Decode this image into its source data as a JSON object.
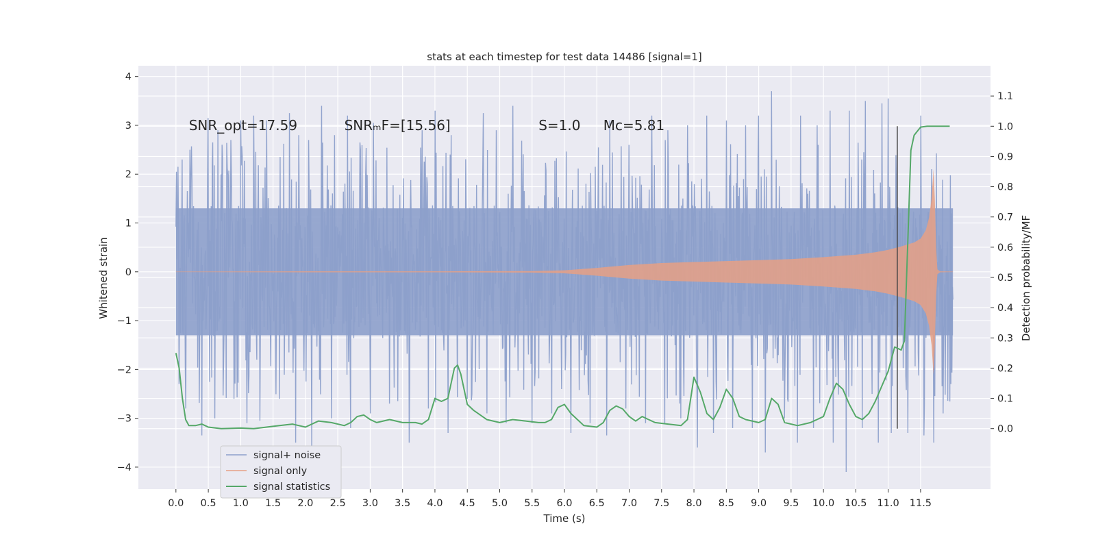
{
  "chart_data": {
    "type": "line",
    "title": "stats at each timestep for test data 14486 [signal=1]",
    "xlabel": "Time (s)",
    "ylabel": "Whitened strain",
    "y2label": "Detection probability/MF",
    "xlim": [
      -0.58,
      12.58
    ],
    "ylim": [
      -4.45,
      4.22
    ],
    "y2lim": [
      -0.2,
      1.2
    ],
    "x_ticks": [
      "0.0",
      "0.5",
      "1.0",
      "1.5",
      "2.0",
      "2.5",
      "3.0",
      "3.5",
      "4.0",
      "4.5",
      "5.0",
      "5.5",
      "6.0",
      "6.5",
      "7.0",
      "7.5",
      "8.0",
      "8.5",
      "9.0",
      "9.5",
      "10.0",
      "10.5",
      "11.0",
      "11.5"
    ],
    "y_ticks": [
      "4",
      "3",
      "2",
      "1",
      "0",
      "−1",
      "−2",
      "−3",
      "−4"
    ],
    "y2_ticks": [
      "1.1",
      "1.0",
      "0.9",
      "0.8",
      "0.7",
      "0.6",
      "0.5",
      "0.4",
      "0.3",
      "0.2",
      "0.1",
      "0.0"
    ],
    "grid": true,
    "legend_position": "lower-left",
    "annotations": [
      {
        "text": "SNR_opt=17.59",
        "x": 0.2,
        "y": 3.0
      },
      {
        "text": "SNRₘF=[15.56]",
        "x": 2.6,
        "y": 3.0
      },
      {
        "text": "S=1.0",
        "x": 5.6,
        "y": 3.0
      },
      {
        "text": "Mᴄ=5.81",
        "x": 6.6,
        "y": 3.0
      }
    ],
    "vertical_marker_x": 11.14,
    "series": [
      {
        "name": "signal+ noise",
        "color": "#8da0cb",
        "x_range": [
          0.0,
          12.0
        ],
        "core_range": [
          -1.3,
          1.3
        ],
        "peaks_high": [
          [
            0.03,
            2.15
          ],
          [
            0.1,
            2.3
          ],
          [
            0.22,
            2.5
          ],
          [
            0.4,
            2.6
          ],
          [
            0.5,
            3.15
          ],
          [
            0.65,
            2.9
          ],
          [
            0.85,
            2.7
          ],
          [
            1.0,
            3.1
          ],
          [
            1.2,
            3.2
          ],
          [
            1.4,
            3.1
          ],
          [
            1.6,
            2.5
          ],
          [
            1.75,
            3.25
          ],
          [
            1.9,
            2.8
          ],
          [
            2.05,
            2.7
          ],
          [
            2.25,
            3.4
          ],
          [
            2.45,
            2.8
          ],
          [
            2.65,
            3.2
          ],
          [
            2.85,
            2.5
          ],
          [
            3.05,
            3.05
          ],
          [
            3.3,
            2.6
          ],
          [
            3.6,
            3.5
          ],
          [
            3.8,
            2.9
          ],
          [
            4.0,
            3.3
          ],
          [
            4.25,
            2.8
          ],
          [
            4.5,
            3.0
          ],
          [
            4.75,
            3.25
          ],
          [
            4.95,
            2.9
          ],
          [
            5.2,
            3.4
          ],
          [
            5.5,
            2.9
          ],
          [
            5.8,
            3.5
          ],
          [
            6.1,
            2.8
          ],
          [
            6.4,
            3.2
          ],
          [
            6.7,
            3.1
          ],
          [
            7.0,
            2.6
          ],
          [
            7.35,
            3.2
          ],
          [
            7.6,
            2.9
          ],
          [
            7.9,
            3.0
          ],
          [
            8.2,
            3.2
          ],
          [
            8.5,
            3.1
          ],
          [
            8.8,
            3.0
          ],
          [
            9.0,
            3.2
          ],
          [
            9.2,
            3.7
          ],
          [
            9.4,
            3.4
          ],
          [
            9.65,
            3.2
          ],
          [
            9.9,
            3.0
          ],
          [
            10.1,
            3.3
          ],
          [
            10.4,
            3.3
          ],
          [
            10.65,
            3.5
          ],
          [
            10.9,
            3.45
          ],
          [
            11.0,
            3.55
          ],
          [
            11.3,
            3.3
          ],
          [
            11.5,
            3.2
          ],
          [
            11.7,
            3.25
          ],
          [
            11.85,
            2.7
          ],
          [
            11.97,
            2.0
          ]
        ],
        "peaks_low": [
          [
            0.05,
            -2.3
          ],
          [
            0.15,
            -2.8
          ],
          [
            0.4,
            -3.35
          ],
          [
            0.6,
            -3.0
          ],
          [
            0.9,
            -2.6
          ],
          [
            1.1,
            -3.1
          ],
          [
            1.3,
            -3.05
          ],
          [
            1.6,
            -2.6
          ],
          [
            1.85,
            -3.5
          ],
          [
            2.1,
            -3.6
          ],
          [
            2.4,
            -3.0
          ],
          [
            2.7,
            -3.2
          ],
          [
            3.0,
            -2.9
          ],
          [
            3.3,
            -2.7
          ],
          [
            3.6,
            -3.5
          ],
          [
            3.9,
            -2.8
          ],
          [
            4.2,
            -3.3
          ],
          [
            4.5,
            -2.6
          ],
          [
            4.8,
            -2.9
          ],
          [
            5.1,
            -3.1
          ],
          [
            5.5,
            -3.1
          ],
          [
            5.8,
            -2.9
          ],
          [
            6.1,
            -3.3
          ],
          [
            6.4,
            -3.1
          ],
          [
            6.65,
            -3.35
          ],
          [
            6.95,
            -2.8
          ],
          [
            7.25,
            -3.1
          ],
          [
            7.55,
            -3.1
          ],
          [
            7.8,
            -3.0
          ],
          [
            8.05,
            -3.6
          ],
          [
            8.3,
            -3.3
          ],
          [
            8.6,
            -3.2
          ],
          [
            8.9,
            -3.2
          ],
          [
            9.1,
            -3.7
          ],
          [
            9.4,
            -3.0
          ],
          [
            9.6,
            -3.5
          ],
          [
            9.85,
            -3.2
          ],
          [
            10.15,
            -3.5
          ],
          [
            10.35,
            -4.1
          ],
          [
            10.6,
            -3.2
          ],
          [
            10.85,
            -3.5
          ],
          [
            11.05,
            -3.3
          ],
          [
            11.3,
            -3.3
          ],
          [
            11.55,
            -3.35
          ],
          [
            11.7,
            -3.5
          ],
          [
            11.85,
            -2.9
          ],
          [
            11.97,
            -2.3
          ]
        ]
      },
      {
        "name": "signal only",
        "color": "#e6a085",
        "envelope": [
          [
            0.0,
            0.005
          ],
          [
            2.0,
            0.01
          ],
          [
            4.0,
            0.01
          ],
          [
            5.5,
            0.015
          ],
          [
            6.0,
            0.03
          ],
          [
            6.5,
            0.08
          ],
          [
            7.0,
            0.14
          ],
          [
            7.5,
            0.18
          ],
          [
            8.0,
            0.2
          ],
          [
            8.5,
            0.22
          ],
          [
            9.0,
            0.24
          ],
          [
            9.5,
            0.26
          ],
          [
            10.0,
            0.3
          ],
          [
            10.5,
            0.35
          ],
          [
            10.8,
            0.4
          ],
          [
            11.0,
            0.45
          ],
          [
            11.2,
            0.52
          ],
          [
            11.4,
            0.6
          ],
          [
            11.5,
            0.68
          ],
          [
            11.58,
            0.85
          ],
          [
            11.63,
            1.1
          ],
          [
            11.67,
            1.5
          ],
          [
            11.7,
            2.1
          ],
          [
            11.72,
            1.5
          ],
          [
            11.74,
            0.5
          ],
          [
            11.76,
            0.05
          ],
          [
            11.8,
            0.01
          ],
          [
            12.0,
            0.005
          ]
        ]
      },
      {
        "name": "signal statistics",
        "color": "#55a868",
        "points": [
          [
            0.0,
            0.25
          ],
          [
            0.05,
            0.2
          ],
          [
            0.1,
            0.1
          ],
          [
            0.15,
            0.03
          ],
          [
            0.2,
            0.01
          ],
          [
            0.3,
            0.01
          ],
          [
            0.4,
            0.015
          ],
          [
            0.5,
            0.005
          ],
          [
            0.7,
            0.0
          ],
          [
            1.0,
            0.002
          ],
          [
            1.2,
            0.0
          ],
          [
            1.4,
            0.005
          ],
          [
            1.6,
            0.01
          ],
          [
            1.8,
            0.015
          ],
          [
            1.9,
            0.01
          ],
          [
            2.0,
            0.005
          ],
          [
            2.2,
            0.025
          ],
          [
            2.4,
            0.02
          ],
          [
            2.6,
            0.01
          ],
          [
            2.7,
            0.02
          ],
          [
            2.8,
            0.04
          ],
          [
            2.9,
            0.045
          ],
          [
            3.0,
            0.03
          ],
          [
            3.1,
            0.02
          ],
          [
            3.3,
            0.03
          ],
          [
            3.5,
            0.02
          ],
          [
            3.7,
            0.02
          ],
          [
            3.8,
            0.015
          ],
          [
            3.9,
            0.03
          ],
          [
            4.0,
            0.1
          ],
          [
            4.1,
            0.09
          ],
          [
            4.2,
            0.1
          ],
          [
            4.3,
            0.2
          ],
          [
            4.35,
            0.21
          ],
          [
            4.4,
            0.18
          ],
          [
            4.5,
            0.08
          ],
          [
            4.6,
            0.06
          ],
          [
            4.8,
            0.03
          ],
          [
            5.0,
            0.02
          ],
          [
            5.2,
            0.03
          ],
          [
            5.4,
            0.025
          ],
          [
            5.6,
            0.02
          ],
          [
            5.7,
            0.02
          ],
          [
            5.8,
            0.03
          ],
          [
            5.9,
            0.07
          ],
          [
            6.0,
            0.08
          ],
          [
            6.1,
            0.05
          ],
          [
            6.3,
            0.01
          ],
          [
            6.5,
            0.005
          ],
          [
            6.6,
            0.02
          ],
          [
            6.7,
            0.06
          ],
          [
            6.8,
            0.075
          ],
          [
            6.9,
            0.065
          ],
          [
            7.0,
            0.04
          ],
          [
            7.1,
            0.025
          ],
          [
            7.2,
            0.04
          ],
          [
            7.3,
            0.03
          ],
          [
            7.4,
            0.02
          ],
          [
            7.6,
            0.015
          ],
          [
            7.8,
            0.01
          ],
          [
            7.9,
            0.03
          ],
          [
            8.0,
            0.17
          ],
          [
            8.1,
            0.12
          ],
          [
            8.2,
            0.05
          ],
          [
            8.3,
            0.03
          ],
          [
            8.4,
            0.07
          ],
          [
            8.5,
            0.13
          ],
          [
            8.6,
            0.1
          ],
          [
            8.7,
            0.04
          ],
          [
            8.8,
            0.03
          ],
          [
            9.0,
            0.02
          ],
          [
            9.1,
            0.03
          ],
          [
            9.2,
            0.1
          ],
          [
            9.3,
            0.08
          ],
          [
            9.4,
            0.02
          ],
          [
            9.6,
            0.01
          ],
          [
            9.8,
            0.02
          ],
          [
            10.0,
            0.04
          ],
          [
            10.1,
            0.1
          ],
          [
            10.2,
            0.15
          ],
          [
            10.3,
            0.13
          ],
          [
            10.4,
            0.08
          ],
          [
            10.5,
            0.04
          ],
          [
            10.6,
            0.03
          ],
          [
            10.7,
            0.05
          ],
          [
            10.8,
            0.09
          ],
          [
            10.9,
            0.14
          ],
          [
            11.0,
            0.19
          ],
          [
            11.1,
            0.27
          ],
          [
            11.2,
            0.26
          ],
          [
            11.25,
            0.29
          ],
          [
            11.3,
            0.6
          ],
          [
            11.35,
            0.92
          ],
          [
            11.4,
            0.97
          ],
          [
            11.5,
            0.997
          ],
          [
            11.6,
            1.0
          ],
          [
            11.8,
            1.0
          ],
          [
            11.95,
            1.0
          ]
        ]
      }
    ]
  }
}
